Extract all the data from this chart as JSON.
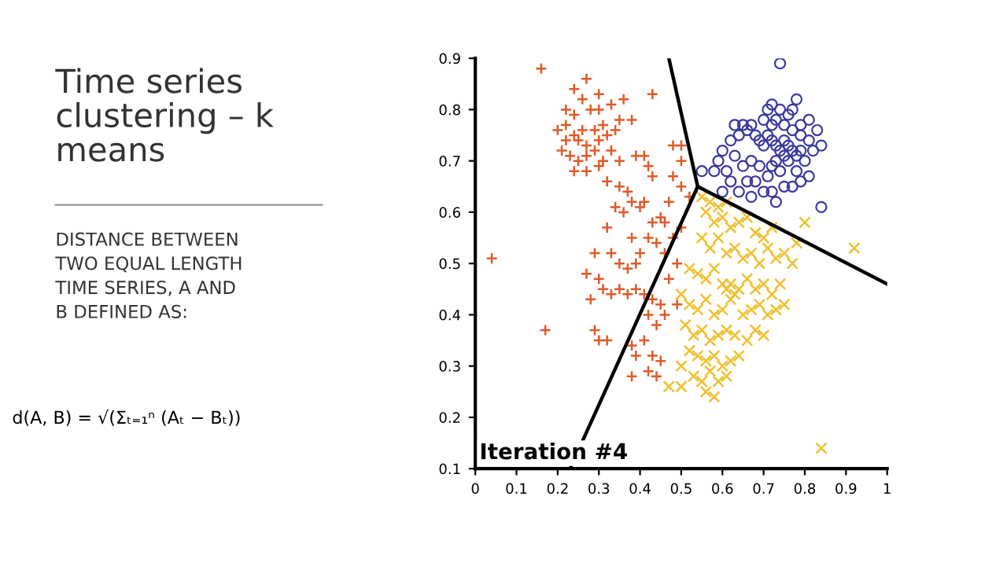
{
  "chart_data": {
    "type": "scatter",
    "title": "Time series clustering – k means",
    "subtitle": "DISTANCE BETWEEN TWO EQUAL LENGTH TIME SERIES, A AND B DEFINED AS:",
    "annotations": [
      "Iteration #4",
      "d(A, B) = √(Σₜ₌₁ⁿ (Aₜ − Bₜ))"
    ],
    "xlim": [
      0,
      1
    ],
    "ylim": [
      0.1,
      0.9
    ],
    "xticks": [
      0,
      0.1,
      0.2,
      0.3,
      0.4,
      0.5,
      0.6,
      0.7,
      0.8,
      0.9,
      1
    ],
    "yticks": [
      0.1,
      0.2,
      0.3,
      0.4,
      0.5,
      0.6,
      0.7,
      0.8,
      0.9
    ],
    "grid": false,
    "legend": false,
    "series": [
      {
        "marker": "plus",
        "color": "#e05a28",
        "x": [
          0.16,
          0.24,
          0.27,
          0.3,
          0.26,
          0.22,
          0.24,
          0.28,
          0.3,
          0.33,
          0.36,
          0.38,
          0.2,
          0.22,
          0.24,
          0.25,
          0.26,
          0.27,
          0.29,
          0.3,
          0.31,
          0.32,
          0.34,
          0.35,
          0.21,
          0.22,
          0.23,
          0.25,
          0.27,
          0.29,
          0.31,
          0.33,
          0.35,
          0.24,
          0.27,
          0.3,
          0.32,
          0.41,
          0.42,
          0.43,
          0.39,
          0.35,
          0.37,
          0.38,
          0.4,
          0.41,
          0.36,
          0.34,
          0.43,
          0.45,
          0.47,
          0.48,
          0.5,
          0.5,
          0.48,
          0.5,
          0.52,
          0.46,
          0.48,
          0.5,
          0.42,
          0.44,
          0.46,
          0.4,
          0.38,
          0.32,
          0.33,
          0.35,
          0.37,
          0.39,
          0.27,
          0.28,
          0.3,
          0.31,
          0.33,
          0.35,
          0.37,
          0.39,
          0.41,
          0.43,
          0.45,
          0.47,
          0.49,
          0.42,
          0.44,
          0.46,
          0.29,
          0.3,
          0.32,
          0.38,
          0.39,
          0.41,
          0.43,
          0.45,
          0.38,
          0.42,
          0.44,
          0.04,
          0.17,
          0.43,
          0.49,
          0.29
        ],
        "values": [
          0.88,
          0.84,
          0.86,
          0.83,
          0.82,
          0.8,
          0.79,
          0.8,
          0.8,
          0.81,
          0.82,
          0.78,
          0.76,
          0.77,
          0.75,
          0.74,
          0.76,
          0.73,
          0.76,
          0.74,
          0.77,
          0.75,
          0.76,
          0.78,
          0.72,
          0.74,
          0.71,
          0.7,
          0.71,
          0.72,
          0.7,
          0.72,
          0.7,
          0.68,
          0.68,
          0.69,
          0.66,
          0.71,
          0.69,
          0.67,
          0.71,
          0.65,
          0.64,
          0.62,
          0.61,
          0.62,
          0.6,
          0.61,
          0.58,
          0.59,
          0.62,
          0.73,
          0.73,
          0.7,
          0.67,
          0.65,
          0.63,
          0.58,
          0.55,
          0.57,
          0.55,
          0.54,
          0.52,
          0.52,
          0.55,
          0.57,
          0.52,
          0.5,
          0.49,
          0.5,
          0.48,
          0.43,
          0.47,
          0.45,
          0.44,
          0.45,
          0.44,
          0.45,
          0.44,
          0.43,
          0.42,
          0.47,
          0.5,
          0.4,
          0.38,
          0.4,
          0.37,
          0.35,
          0.35,
          0.34,
          0.32,
          0.35,
          0.32,
          0.31,
          0.28,
          0.29,
          0.28,
          0.51,
          0.37,
          0.83,
          0.42,
          0.52
        ]
      },
      {
        "marker": "cross",
        "color": "#f0c030",
        "x": [
          0.55,
          0.57,
          0.59,
          0.61,
          0.56,
          0.58,
          0.6,
          0.62,
          0.64,
          0.66,
          0.68,
          0.7,
          0.72,
          0.8,
          0.92,
          0.55,
          0.57,
          0.59,
          0.61,
          0.63,
          0.65,
          0.67,
          0.69,
          0.71,
          0.73,
          0.75,
          0.78,
          0.77,
          0.52,
          0.54,
          0.56,
          0.58,
          0.6,
          0.61,
          0.62,
          0.63,
          0.64,
          0.62,
          0.66,
          0.68,
          0.7,
          0.72,
          0.74,
          0.5,
          0.52,
          0.54,
          0.56,
          0.58,
          0.6,
          0.65,
          0.67,
          0.69,
          0.71,
          0.73,
          0.75,
          0.51,
          0.53,
          0.55,
          0.57,
          0.59,
          0.61,
          0.63,
          0.66,
          0.68,
          0.7,
          0.52,
          0.54,
          0.56,
          0.58,
          0.6,
          0.62,
          0.64,
          0.5,
          0.53,
          0.55,
          0.57,
          0.59,
          0.61,
          0.47,
          0.5,
          0.56,
          0.58,
          0.84
        ],
        "values": [
          0.63,
          0.62,
          0.61,
          0.62,
          0.6,
          0.58,
          0.59,
          0.57,
          0.58,
          0.59,
          0.56,
          0.55,
          0.57,
          0.58,
          0.53,
          0.55,
          0.53,
          0.55,
          0.52,
          0.53,
          0.51,
          0.52,
          0.5,
          0.53,
          0.51,
          0.52,
          0.54,
          0.5,
          0.49,
          0.48,
          0.47,
          0.49,
          0.46,
          0.45,
          0.46,
          0.44,
          0.45,
          0.43,
          0.47,
          0.45,
          0.46,
          0.44,
          0.46,
          0.44,
          0.42,
          0.41,
          0.43,
          0.4,
          0.41,
          0.4,
          0.41,
          0.42,
          0.4,
          0.41,
          0.42,
          0.38,
          0.36,
          0.37,
          0.35,
          0.36,
          0.37,
          0.36,
          0.35,
          0.37,
          0.36,
          0.33,
          0.32,
          0.31,
          0.32,
          0.3,
          0.31,
          0.32,
          0.3,
          0.28,
          0.27,
          0.29,
          0.27,
          0.28,
          0.26,
          0.26,
          0.25,
          0.24,
          0.14
        ]
      },
      {
        "marker": "circle",
        "color": "#3a3aa0",
        "x": [
          0.74,
          0.78,
          0.77,
          0.81,
          0.79,
          0.71,
          0.72,
          0.74,
          0.76,
          0.7,
          0.72,
          0.73,
          0.75,
          0.77,
          0.79,
          0.81,
          0.83,
          0.82,
          0.84,
          0.8,
          0.63,
          0.65,
          0.67,
          0.64,
          0.66,
          0.68,
          0.69,
          0.7,
          0.71,
          0.72,
          0.73,
          0.74,
          0.75,
          0.76,
          0.77,
          0.78,
          0.79,
          0.73,
          0.75,
          0.76,
          0.72,
          0.74,
          0.71,
          0.69,
          0.67,
          0.65,
          0.63,
          0.61,
          0.62,
          0.6,
          0.58,
          0.59,
          0.66,
          0.68,
          0.7,
          0.72,
          0.75,
          0.77,
          0.79,
          0.78,
          0.81,
          0.84,
          0.73,
          0.67,
          0.64,
          0.55,
          0.6,
          0.62
        ],
        "values": [
          0.89,
          0.82,
          0.8,
          0.78,
          0.77,
          0.8,
          0.81,
          0.8,
          0.79,
          0.78,
          0.77,
          0.78,
          0.77,
          0.76,
          0.75,
          0.74,
          0.76,
          0.72,
          0.73,
          0.7,
          0.77,
          0.77,
          0.77,
          0.75,
          0.76,
          0.75,
          0.74,
          0.73,
          0.75,
          0.74,
          0.73,
          0.72,
          0.74,
          0.73,
          0.72,
          0.71,
          0.72,
          0.7,
          0.71,
          0.7,
          0.69,
          0.68,
          0.67,
          0.69,
          0.7,
          0.69,
          0.71,
          0.68,
          0.66,
          0.64,
          0.68,
          0.7,
          0.66,
          0.66,
          0.64,
          0.64,
          0.65,
          0.65,
          0.66,
          0.68,
          0.67,
          0.61,
          0.62,
          0.63,
          0.64,
          0.68,
          0.72,
          0.74
        ]
      },
      {
        "type": "line",
        "color": "#000000",
        "x": [
          0.23,
          0.54
        ],
        "values": [
          0.1,
          0.65
        ]
      },
      {
        "type": "line",
        "color": "#000000",
        "x": [
          0.47,
          0.54
        ],
        "values": [
          0.9,
          0.65
        ]
      },
      {
        "type": "line",
        "color": "#000000",
        "x": [
          0.54,
          1.0
        ],
        "values": [
          0.65,
          0.46
        ]
      }
    ]
  }
}
